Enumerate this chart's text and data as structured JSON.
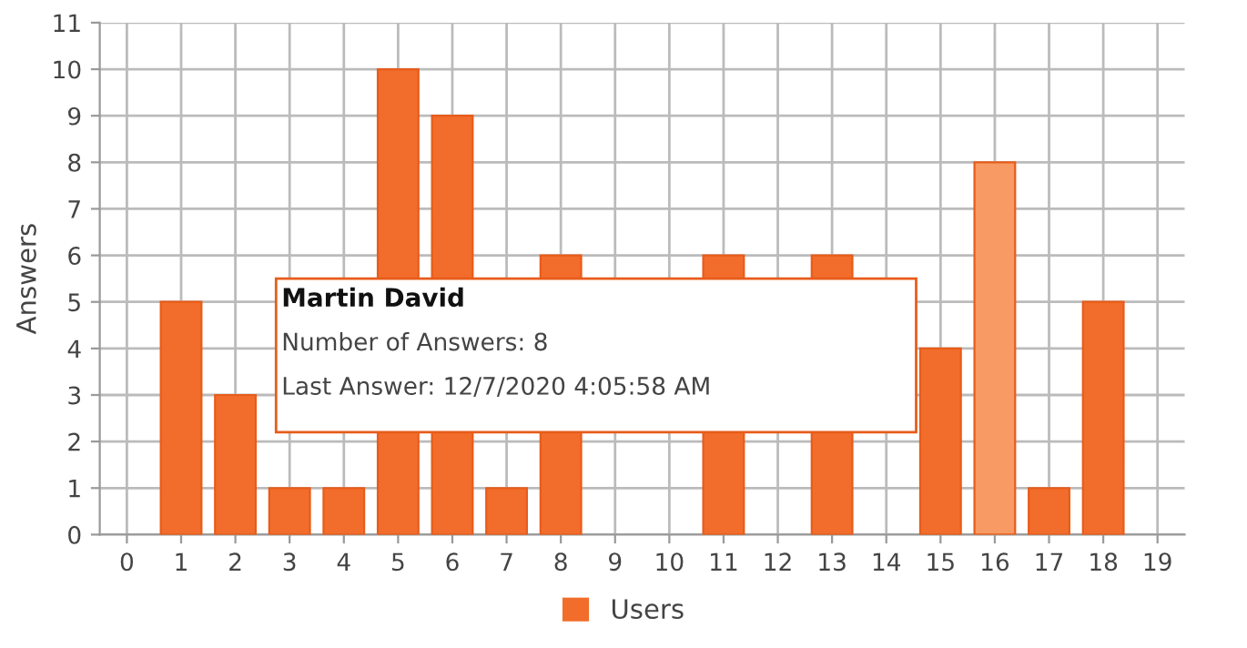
{
  "chart_data": {
    "type": "bar",
    "ylabel": "Answers",
    "x": [
      1,
      2,
      3,
      4,
      5,
      6,
      7,
      8,
      9,
      10,
      11,
      12,
      13,
      14,
      15,
      16,
      17,
      18
    ],
    "series": [
      {
        "name": "Users",
        "color": "#f26d2b",
        "values": [
          5,
          3,
          1,
          1,
          10,
          9,
          1,
          6,
          null,
          null,
          6,
          null,
          6,
          null,
          4,
          8,
          1,
          5
        ],
        "colors": [
          "#f26d2b",
          "#f26d2b",
          "#f26d2b",
          "#f26d2b",
          "#f26d2b",
          "#f26d2b",
          "#f26d2b",
          "#f26d2b",
          "#f26d2b",
          "#f26d2b",
          "#f26d2b",
          "#f26d2b",
          "#f26d2b",
          "#f26d2b",
          "#f26d2b",
          "#f89a63",
          "#f26d2b",
          "#f26d2b"
        ]
      }
    ],
    "xlim": [
      -0.5,
      19.5
    ],
    "xticks": [
      0,
      1,
      2,
      3,
      4,
      5,
      6,
      7,
      8,
      9,
      10,
      11,
      12,
      13,
      14,
      15,
      16,
      17,
      18,
      19
    ],
    "ylim": [
      0,
      11
    ],
    "yticks": [
      0,
      1,
      2,
      3,
      4,
      5,
      6,
      7,
      8,
      9,
      10,
      11
    ],
    "grid": true,
    "legend": "bottom",
    "annotations": [
      "Martin David",
      "Number of Answers: 8",
      "Last Answer: 12/7/2020 4:05:58 AM"
    ]
  }
}
